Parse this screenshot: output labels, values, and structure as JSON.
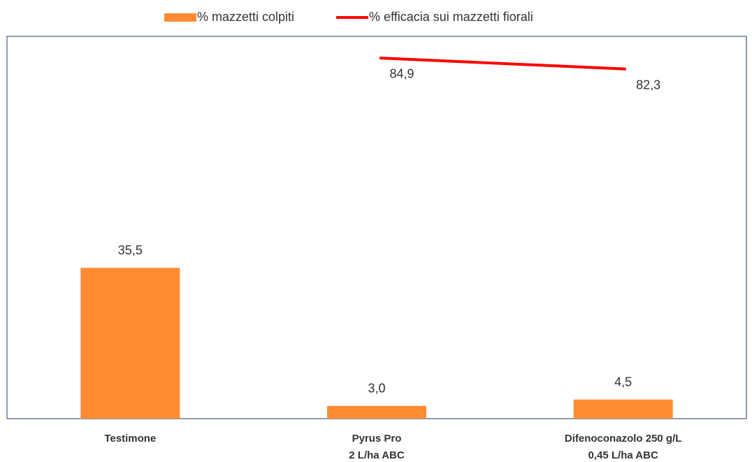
{
  "chart_data": {
    "type": "bar_line",
    "categories": [
      [
        "Testimone"
      ],
      [
        "Pyrus Pro",
        "2 L/ha ABC"
      ],
      [
        "Difenoconazolo 250 g/L",
        "0,45 L/ha ABC"
      ]
    ],
    "series": [
      {
        "name": "% mazzetti colpiti",
        "color": "#ff8c33",
        "kind": "bar",
        "values": [
          35.5,
          3.0,
          4.5
        ],
        "value_labels": [
          "35,5",
          "3,0",
          "4,5"
        ]
      },
      {
        "name": "% efficacia sui mazzetti fiorali",
        "color": "#ff0000",
        "kind": "line",
        "values": [
          null,
          84.9,
          82.3
        ],
        "value_labels": [
          null,
          "84,9",
          "82,3"
        ]
      }
    ],
    "ylim": [
      0,
      90
    ],
    "legend": "top"
  }
}
